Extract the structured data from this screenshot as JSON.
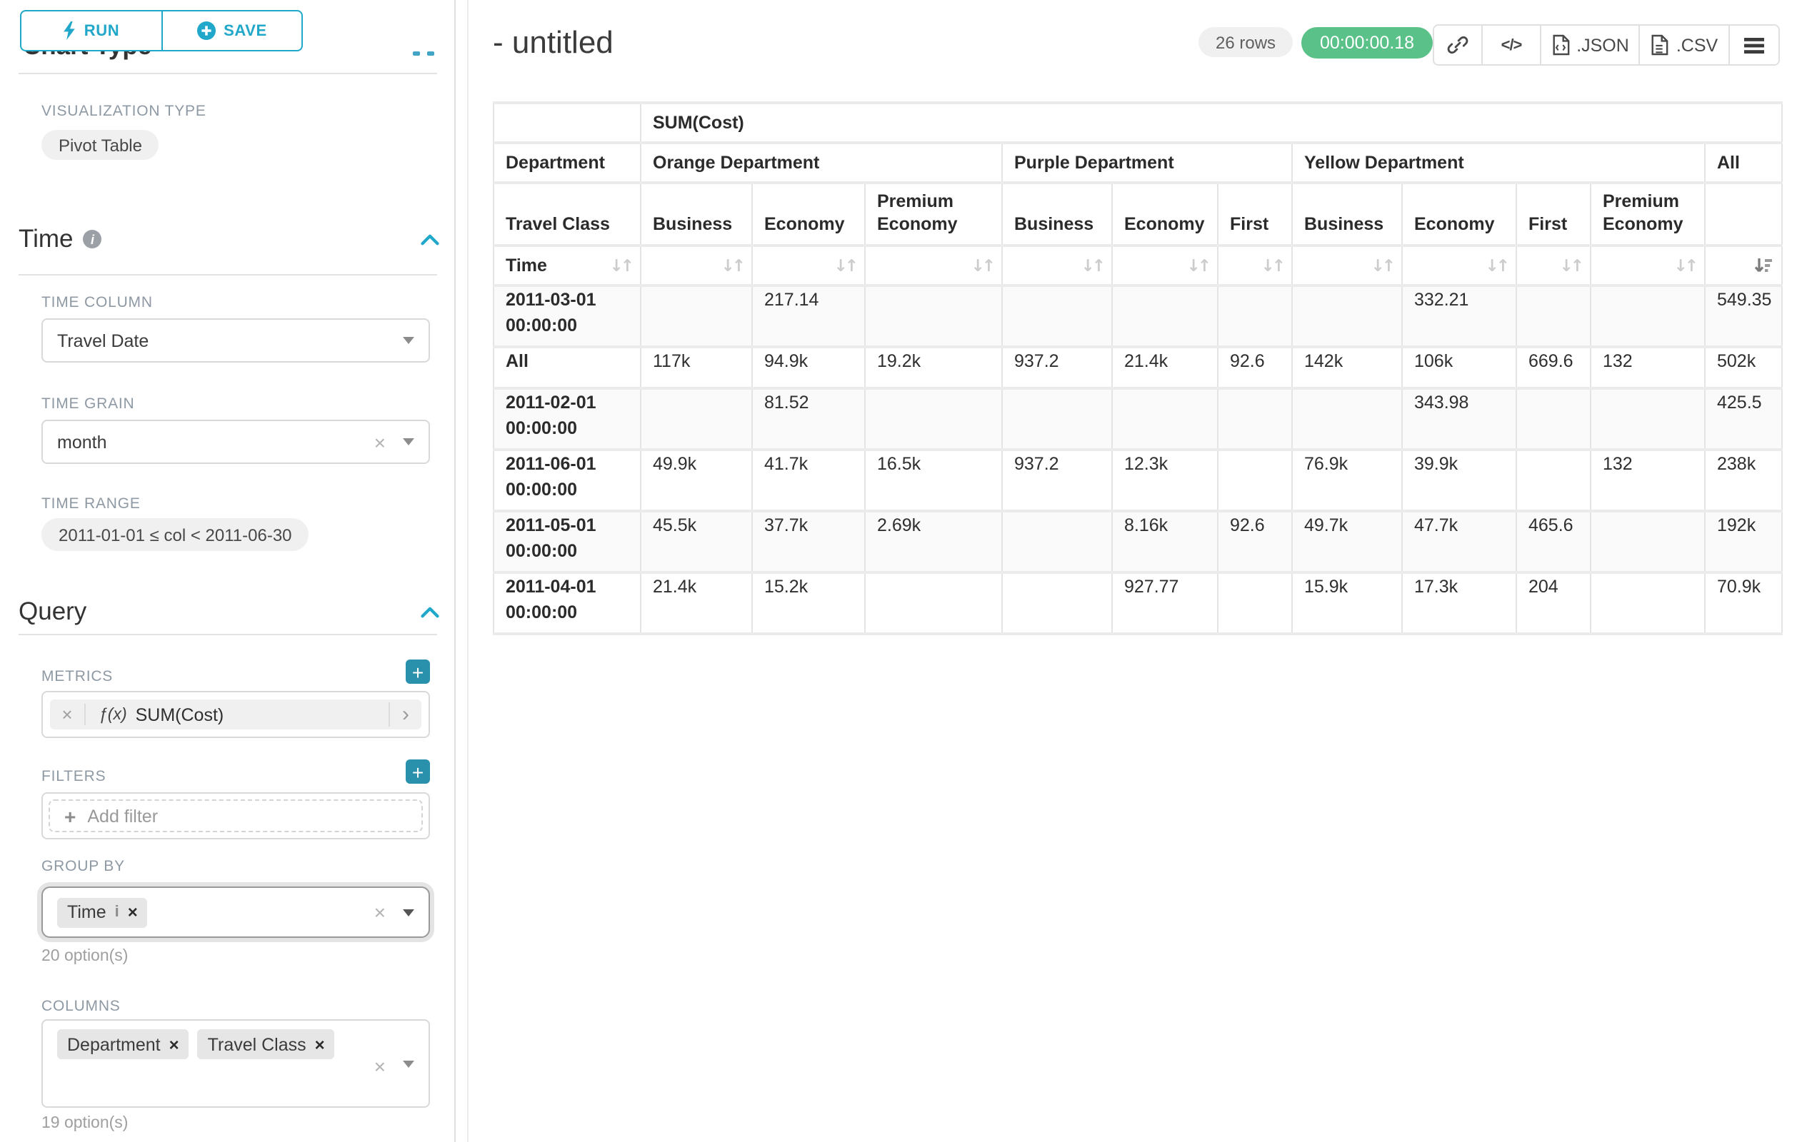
{
  "toolbar": {
    "run_label": "RUN",
    "save_label": "SAVE"
  },
  "sidebar": {
    "cut_section_title": "Chart Type",
    "viz": {
      "label": "VISUALIZATION TYPE",
      "value": "Pivot Table"
    },
    "time": {
      "title": "Time",
      "time_column_label": "TIME COLUMN",
      "time_column_value": "Travel Date",
      "time_grain_label": "TIME GRAIN",
      "time_grain_value": "month",
      "time_range_label": "TIME RANGE",
      "time_range_value": "2011-01-01 ≤ col < 2011-06-30"
    },
    "query": {
      "title": "Query",
      "metrics_label": "METRICS",
      "metric_fx": "ƒ(x)",
      "metric_value": "SUM(Cost)",
      "filters_label": "FILTERS",
      "add_filter_label": "Add filter",
      "group_by_label": "GROUP BY",
      "group_by_chips": [
        {
          "label": "Time"
        }
      ],
      "group_by_options": "20 option(s)",
      "columns_label": "COLUMNS",
      "columns_chips": [
        {
          "label": "Department"
        },
        {
          "label": "Travel Class"
        }
      ],
      "columns_options": "19 option(s)"
    }
  },
  "main": {
    "title": "- untitled",
    "rows_badge": "26 rows",
    "duration_badge": "00:00:00.18",
    "export_json_label": ".JSON",
    "export_csv_label": ".CSV"
  },
  "colors": {
    "accent_teal": "#20a7c9",
    "success_green": "#5ac189"
  },
  "pivot": {
    "metric_header": "SUM(Cost)",
    "department_label": "Department",
    "travel_class_label": "Travel Class",
    "time_label": "Time",
    "col_groups": [
      {
        "name": "Orange Department",
        "cols": [
          "Business",
          "Economy",
          "Premium Economy"
        ]
      },
      {
        "name": "Purple Department",
        "cols": [
          "Business",
          "Economy",
          "First"
        ]
      },
      {
        "name": "Yellow Department",
        "cols": [
          "Business",
          "Economy",
          "First",
          "Premium Economy"
        ]
      },
      {
        "name": "All",
        "cols": [
          ""
        ]
      }
    ],
    "rows": [
      {
        "label": "2011-03-01 00:00:00",
        "values": [
          "",
          "217.14",
          "",
          "",
          "",
          "",
          "",
          "332.21",
          "",
          "",
          "549.35"
        ]
      },
      {
        "label": "All",
        "values": [
          "117k",
          "94.9k",
          "19.2k",
          "937.2",
          "21.4k",
          "92.6",
          "142k",
          "106k",
          "669.6",
          "132",
          "502k"
        ]
      },
      {
        "label": "2011-02-01 00:00:00",
        "values": [
          "",
          "81.52",
          "",
          "",
          "",
          "",
          "",
          "343.98",
          "",
          "",
          "425.5"
        ]
      },
      {
        "label": "2011-06-01 00:00:00",
        "values": [
          "49.9k",
          "41.7k",
          "16.5k",
          "937.2",
          "12.3k",
          "",
          "76.9k",
          "39.9k",
          "",
          "132",
          "238k"
        ]
      },
      {
        "label": "2011-05-01 00:00:00",
        "values": [
          "45.5k",
          "37.7k",
          "2.69k",
          "",
          "8.16k",
          "92.6",
          "49.7k",
          "47.7k",
          "465.6",
          "",
          "192k"
        ]
      },
      {
        "label": "2011-04-01 00:00:00",
        "values": [
          "21.4k",
          "15.2k",
          "",
          "",
          "927.77",
          "",
          "15.9k",
          "17.3k",
          "204",
          "",
          "70.9k"
        ]
      }
    ]
  }
}
